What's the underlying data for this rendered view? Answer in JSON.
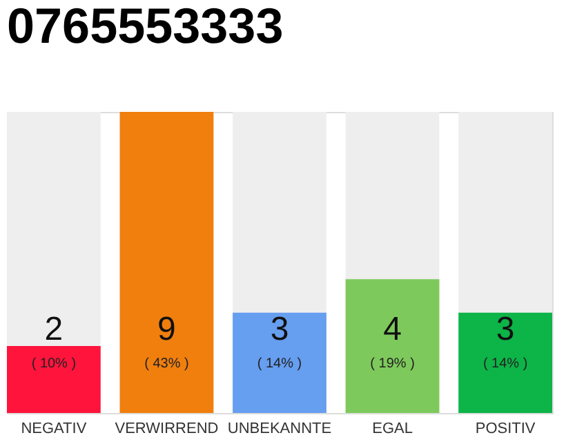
{
  "chart_data": {
    "type": "bar",
    "title": "0765553333",
    "categories": [
      "NEGATIV",
      "VERWIRREND",
      "UNBEKANNTE",
      "EGAL",
      "POSITIV"
    ],
    "values": [
      2,
      9,
      3,
      4,
      3
    ],
    "colors": [
      "#ff143c",
      "#f07f0e",
      "#669ef0",
      "#7ec95c",
      "#0db447"
    ],
    "data_labels": true,
    "annotations": [
      "( 10% )",
      "( 43% )",
      "( 14% )",
      "( 19% )",
      "( 14% )"
    ],
    "tick_labels": "x"
  }
}
